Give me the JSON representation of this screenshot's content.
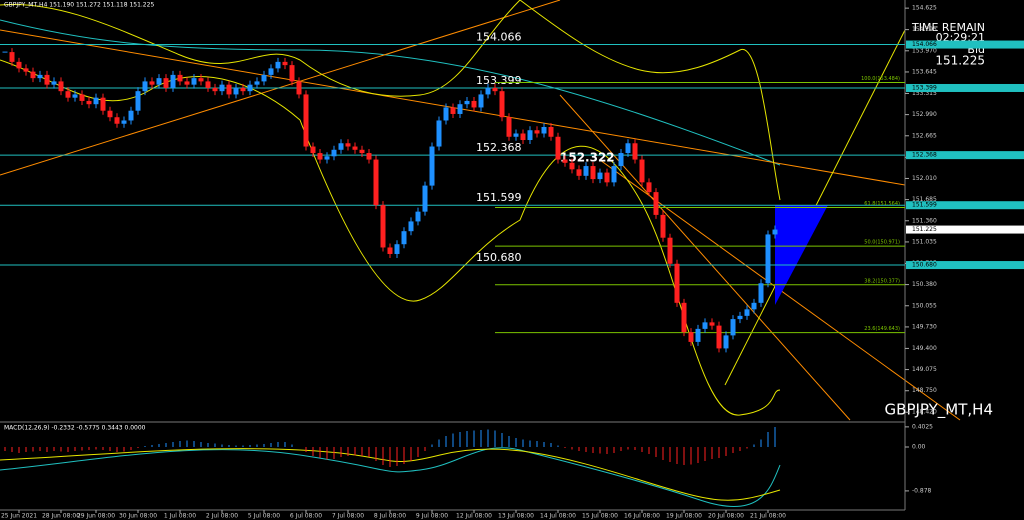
{
  "chart_data": {
    "type": "candlestick",
    "header": "GBPJPY_MT,H4  151.190 151.272 151.118 151.225",
    "symbol": "GBPJPY_MT,H4",
    "time_remain_title": "TIME REMAIN",
    "time_remain": "02:29:21",
    "bid_title": "Bid",
    "bid": {
      "value": 151.225,
      "label": "151.225"
    },
    "annotation": {
      "value": 152.322,
      "label": "152.322"
    },
    "bull_color": "#1e90ff",
    "bear_color": "#ff2020",
    "ylim": [
      148.27,
      154.75
    ],
    "yticks": [
      154.625,
      154.295,
      {
        "value": 153.97,
        "label": "153.970"
      },
      153.645,
      153.315,
      {
        "value": 152.99,
        "label": "152.990"
      },
      152.665,
      152.335,
      {
        "value": 152.01,
        "label": "152.010"
      },
      151.685,
      {
        "value": 151.36,
        "label": "151.360"
      },
      151.035,
      150.705,
      {
        "value": 150.38,
        "label": "150.380"
      },
      150.055,
      {
        "value": 149.73,
        "label": "149.730"
      },
      {
        "value": 149.4,
        "label": "149.400"
      },
      149.075,
      {
        "value": 148.75,
        "label": "148.750"
      },
      {
        "value": 148.42,
        "label": "148.420"
      }
    ],
    "levels": [
      154.066,
      153.399,
      152.368,
      151.599,
      {
        "value": 150.68,
        "label": "150.680"
      }
    ],
    "level_color": "#20c0c0",
    "fib": [
      {
        "value": 153.484,
        "label": "100.0(153.484)"
      },
      {
        "value": 151.564,
        "label": "61.8(151.564)"
      },
      {
        "value": 150.971,
        "label": "50.0(150.971)"
      },
      {
        "value": 150.377,
        "label": "38.2(150.377)"
      },
      {
        "value": 149.643,
        "label": "23.6(149.643)"
      }
    ],
    "fib_color": "#7cc400",
    "categories": [
      null,
      null,
      "25 Jun 2021",
      null,
      null,
      null,
      null,
      null,
      "28 Jun 08:00",
      null,
      null,
      null,
      null,
      "29 Jun 08:00",
      null,
      null,
      null,
      null,
      null,
      "30 Jun 08:00",
      null,
      null,
      null,
      null,
      null,
      "1 Jul 08:00",
      null,
      null,
      null,
      null,
      null,
      "2 Jul 08:00",
      null,
      null,
      null,
      null,
      null,
      "5 Jul 08:00",
      null,
      null,
      null,
      null,
      null,
      "6 Jul 08:00",
      null,
      null,
      null,
      null,
      null,
      "7 Jul 08:00",
      null,
      null,
      null,
      null,
      null,
      "8 Jul 08:00",
      null,
      null,
      null,
      null,
      null,
      "9 Jul 08:00",
      null,
      null,
      null,
      null,
      null,
      "12 Jul 08:00",
      null,
      null,
      null,
      null,
      null,
      "13 Jul 08:00",
      null,
      null,
      null,
      null,
      null,
      "14 Jul 08:00",
      null,
      null,
      null,
      null,
      null,
      "15 Jul 08:00",
      null,
      null,
      null,
      null,
      null,
      "16 Jul 08:00",
      null,
      null,
      null,
      null,
      null,
      "19 Jul 08:00",
      null,
      null,
      null,
      null,
      null,
      "20 Jul 08:00",
      null,
      null,
      null,
      null,
      null,
      "21 Jul 08:00",
      null
    ],
    "close": [
      153.95,
      153.8,
      153.7,
      153.65,
      153.55,
      153.6,
      153.45,
      153.5,
      153.35,
      153.25,
      153.3,
      153.2,
      153.15,
      153.25,
      153.05,
      152.95,
      152.85,
      152.9,
      153.05,
      153.35,
      153.5,
      153.45,
      153.55,
      153.4,
      153.6,
      153.5,
      153.45,
      153.55,
      153.5,
      153.4,
      153.35,
      153.45,
      153.3,
      153.4,
      153.35,
      153.45,
      153.5,
      153.6,
      153.7,
      153.8,
      153.75,
      153.5,
      153.3,
      152.5,
      152.4,
      152.3,
      152.35,
      152.45,
      152.55,
      152.5,
      152.45,
      152.4,
      152.3,
      151.6,
      150.95,
      150.85,
      151.0,
      151.2,
      151.35,
      151.5,
      151.9,
      152.5,
      152.9,
      153.1,
      153.0,
      153.15,
      153.2,
      153.1,
      153.3,
      153.4,
      153.35,
      152.95,
      152.65,
      152.7,
      152.6,
      152.75,
      152.7,
      152.8,
      152.65,
      152.3,
      152.25,
      152.15,
      152.05,
      152.2,
      152.0,
      152.1,
      151.95,
      152.2,
      152.4,
      152.55,
      152.3,
      151.95,
      151.8,
      151.45,
      151.1,
      150.7,
      150.1,
      149.65,
      149.5,
      149.7,
      149.8,
      149.75,
      149.4,
      149.6,
      149.85,
      149.9,
      150.0,
      150.1,
      150.4,
      151.15,
      151.225
    ],
    "macd": {
      "label": "MACD(12,26,9) -0.2332 -0.5775 0.3443 0.0000",
      "ylim": [
        -1.26,
        0.5
      ],
      "yticks": [
        0.4025,
        {
          "value": 0,
          "label": "0.00"
        },
        -0.878
      ],
      "values": [
        -0.08,
        -0.1,
        -0.12,
        -0.1,
        -0.09,
        -0.08,
        -0.1,
        -0.08,
        -0.09,
        -0.1,
        -0.08,
        -0.07,
        -0.06,
        -0.05,
        -0.06,
        -0.08,
        -0.1,
        -0.09,
        -0.06,
        -0.02,
        0.02,
        0.04,
        0.06,
        0.08,
        0.1,
        0.12,
        0.13,
        0.12,
        0.1,
        0.08,
        0.07,
        0.05,
        0.04,
        0.03,
        0.03,
        0.04,
        0.05,
        0.06,
        0.08,
        0.1,
        0.1,
        0.05,
        0.0,
        -0.1,
        -0.18,
        -0.22,
        -0.25,
        -0.24,
        -0.2,
        -0.18,
        -0.17,
        -0.18,
        -0.2,
        -0.28,
        -0.36,
        -0.4,
        -0.38,
        -0.34,
        -0.28,
        -0.2,
        -0.08,
        0.05,
        0.15,
        0.22,
        0.27,
        0.3,
        0.32,
        0.33,
        0.34,
        0.35,
        0.33,
        0.28,
        0.22,
        0.18,
        0.15,
        0.13,
        0.12,
        0.1,
        0.08,
        0.03,
        -0.02,
        -0.05,
        -0.08,
        -0.1,
        -0.12,
        -0.13,
        -0.14,
        -0.12,
        -0.08,
        -0.05,
        -0.06,
        -0.1,
        -0.14,
        -0.2,
        -0.26,
        -0.3,
        -0.34,
        -0.36,
        -0.35,
        -0.32,
        -0.28,
        -0.24,
        -0.22,
        -0.18,
        -0.12,
        -0.08,
        -0.03,
        0.05,
        0.15,
        0.3,
        0.4
      ]
    }
  }
}
